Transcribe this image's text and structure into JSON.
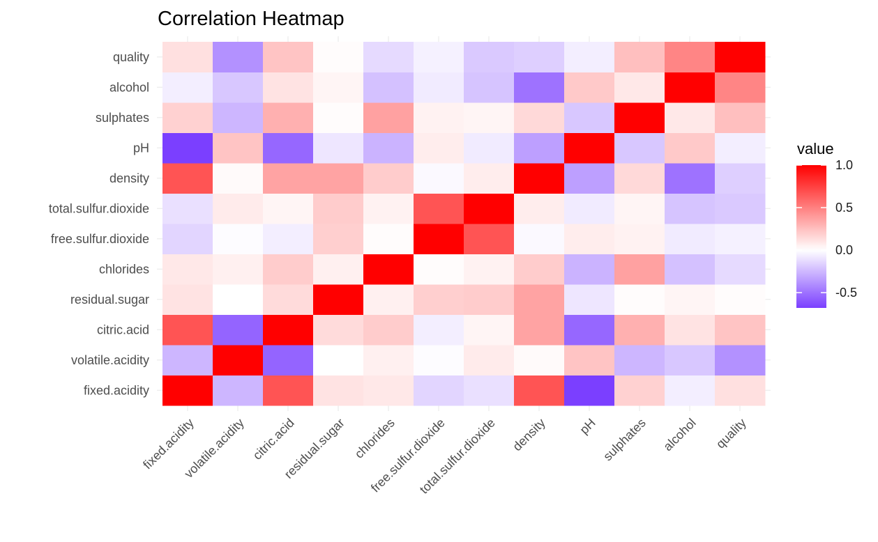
{
  "chart_data": {
    "type": "heatmap",
    "title": "Correlation Heatmap",
    "xlabel": "",
    "ylabel": "",
    "x_categories": [
      "fixed.acidity",
      "volatile.acidity",
      "citric.acid",
      "residual.sugar",
      "chlorides",
      "free.sulfur.dioxide",
      "total.sulfur.dioxide",
      "density",
      "pH",
      "sulphates",
      "alcohol",
      "quality"
    ],
    "y_categories": [
      "fixed.acidity",
      "volatile.acidity",
      "citric.acid",
      "residual.sugar",
      "chlorides",
      "free.sulfur.dioxide",
      "total.sulfur.dioxide",
      "density",
      "pH",
      "sulphates",
      "alcohol",
      "quality"
    ],
    "values": [
      [
        1.0,
        -0.26,
        0.67,
        0.11,
        0.09,
        -0.15,
        -0.11,
        0.67,
        -0.68,
        0.18,
        -0.06,
        0.12
      ],
      [
        -0.26,
        1.0,
        -0.55,
        0.0,
        0.06,
        -0.01,
        0.08,
        0.02,
        0.23,
        -0.26,
        -0.2,
        -0.39
      ],
      [
        0.67,
        -0.55,
        1.0,
        0.14,
        0.2,
        -0.06,
        0.04,
        0.36,
        -0.54,
        0.31,
        0.11,
        0.23
      ],
      [
        0.11,
        0.0,
        0.14,
        1.0,
        0.06,
        0.19,
        0.2,
        0.36,
        -0.09,
        0.01,
        0.04,
        0.01
      ],
      [
        0.09,
        0.06,
        0.2,
        0.06,
        1.0,
        0.01,
        0.05,
        0.2,
        -0.27,
        0.37,
        -0.22,
        -0.13
      ],
      [
        -0.15,
        -0.01,
        -0.06,
        0.19,
        0.01,
        1.0,
        0.67,
        -0.02,
        0.07,
        0.05,
        -0.07,
        -0.05
      ],
      [
        -0.11,
        0.08,
        0.04,
        0.2,
        0.05,
        0.67,
        1.0,
        0.07,
        -0.07,
        0.04,
        -0.21,
        -0.19
      ],
      [
        0.67,
        0.02,
        0.36,
        0.36,
        0.2,
        -0.02,
        0.07,
        1.0,
        -0.34,
        0.15,
        -0.5,
        -0.17
      ],
      [
        -0.68,
        0.23,
        -0.54,
        -0.09,
        -0.27,
        0.07,
        -0.07,
        -0.34,
        1.0,
        -0.2,
        0.21,
        -0.06
      ],
      [
        0.18,
        -0.26,
        0.31,
        0.01,
        0.37,
        0.05,
        0.04,
        0.15,
        -0.2,
        1.0,
        0.09,
        0.25
      ],
      [
        -0.06,
        -0.2,
        0.11,
        0.04,
        -0.22,
        -0.07,
        -0.21,
        -0.5,
        0.21,
        0.09,
        1.0,
        0.48
      ],
      [
        0.12,
        -0.39,
        0.23,
        0.01,
        -0.13,
        -0.05,
        -0.19,
        -0.17,
        -0.06,
        0.25,
        0.48,
        1.0
      ]
    ],
    "value_range": [
      -0.68,
      1.0
    ],
    "color_scale": {
      "low": "#7b3fff",
      "mid": "#ffffff",
      "high": "#ff0000"
    },
    "legend": {
      "title": "value",
      "position": "right",
      "breaks": [
        1.0,
        0.5,
        0.0,
        -0.5
      ],
      "labels": [
        "1.0",
        "0.5",
        "0.0",
        "-0.5"
      ]
    },
    "grid": true
  }
}
